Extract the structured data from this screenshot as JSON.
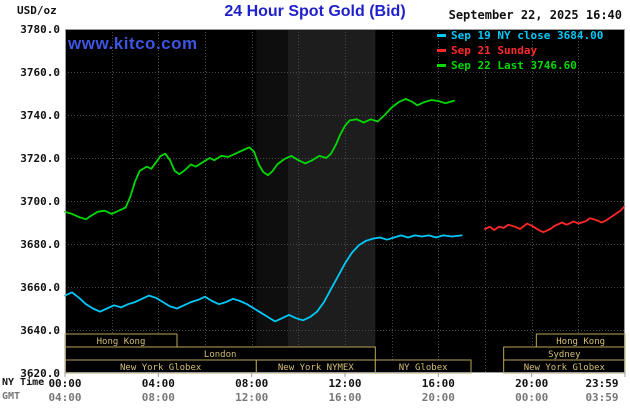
{
  "header": {
    "unit_label": "USD/oz",
    "title": "24 Hour Spot Gold (Bid)",
    "datetime": "September 22, 2025 16:40"
  },
  "watermark": "www.kitco.com",
  "legend": {
    "items": [
      {
        "id": "sep19",
        "label": "Sep 19 NY close 3684.00",
        "color": "#00c8f8"
      },
      {
        "id": "sep21",
        "label": "Sep 21 Sunday",
        "color": "#ff2828"
      },
      {
        "id": "sep22",
        "label": "Sep 22 Last 3746.60",
        "color": "#00d800"
      }
    ]
  },
  "axis": {
    "ny_label": "NY Time",
    "gmt_label": "GMT",
    "tick_hours": [
      0,
      4,
      8,
      12,
      16,
      20,
      24
    ],
    "ny_ticks": [
      "00:00",
      "04:00",
      "08:00",
      "12:00",
      "16:00",
      "20:00",
      "23:59"
    ],
    "gmt_ticks": [
      "04:00",
      "08:00",
      "12:00",
      "16:00",
      "20:00",
      "00:00",
      "03:59"
    ]
  },
  "chart_data": {
    "type": "line",
    "title": "24 Hour Spot Gold (Bid)",
    "ylabel": "USD/oz",
    "xlabel": "NY Time (hours)",
    "ylim": [
      3620,
      3780
    ],
    "xlim_hours": [
      0,
      24
    ],
    "y_ticks": [
      3620,
      3640,
      3660,
      3680,
      3700,
      3720,
      3740,
      3760,
      3780
    ],
    "grid": true,
    "legend_position": "top-right",
    "series": [
      {
        "id": "sep19",
        "name": "Sep 19 NY close 3684.00",
        "color": "#00c8f8",
        "points": [
          [
            0,
            3656
          ],
          [
            0.3,
            3657.5
          ],
          [
            0.6,
            3655
          ],
          [
            0.9,
            3652
          ],
          [
            1.2,
            3650
          ],
          [
            1.5,
            3648.5
          ],
          [
            1.8,
            3650
          ],
          [
            2.1,
            3651.5
          ],
          [
            2.4,
            3650.5
          ],
          [
            2.7,
            3652
          ],
          [
            3,
            3653
          ],
          [
            3.3,
            3654.5
          ],
          [
            3.6,
            3656
          ],
          [
            3.9,
            3655
          ],
          [
            4.2,
            3653
          ],
          [
            4.5,
            3651
          ],
          [
            4.8,
            3650
          ],
          [
            5.1,
            3651.5
          ],
          [
            5.4,
            3653
          ],
          [
            5.7,
            3654
          ],
          [
            6,
            3655.5
          ],
          [
            6.3,
            3653.5
          ],
          [
            6.6,
            3652
          ],
          [
            6.9,
            3653
          ],
          [
            7.2,
            3654.5
          ],
          [
            7.5,
            3653.5
          ],
          [
            7.8,
            3652
          ],
          [
            8.1,
            3650
          ],
          [
            8.4,
            3648
          ],
          [
            8.7,
            3646
          ],
          [
            9,
            3644
          ],
          [
            9.3,
            3645.5
          ],
          [
            9.6,
            3647
          ],
          [
            9.9,
            3645.5
          ],
          [
            10.2,
            3644.5
          ],
          [
            10.5,
            3646
          ],
          [
            10.8,
            3648.5
          ],
          [
            11.1,
            3653
          ],
          [
            11.4,
            3659
          ],
          [
            11.7,
            3665
          ],
          [
            12,
            3671
          ],
          [
            12.3,
            3676
          ],
          [
            12.6,
            3679.5
          ],
          [
            12.9,
            3681.5
          ],
          [
            13.2,
            3682.5
          ],
          [
            13.5,
            3683
          ],
          [
            13.8,
            3682
          ],
          [
            14.1,
            3683
          ],
          [
            14.4,
            3684
          ],
          [
            14.7,
            3683
          ],
          [
            15,
            3684
          ],
          [
            15.3,
            3683.5
          ],
          [
            15.6,
            3684
          ],
          [
            15.9,
            3683
          ],
          [
            16.2,
            3684
          ],
          [
            16.6,
            3683.5
          ],
          [
            17,
            3684
          ]
        ]
      },
      {
        "id": "sep21",
        "name": "Sep 21 Sunday",
        "color": "#ff2828",
        "points": [
          [
            18,
            3687
          ],
          [
            18.2,
            3688
          ],
          [
            18.4,
            3686.5
          ],
          [
            18.6,
            3688
          ],
          [
            18.8,
            3687.5
          ],
          [
            19,
            3689
          ],
          [
            19.3,
            3688
          ],
          [
            19.5,
            3687
          ],
          [
            19.8,
            3689.5
          ],
          [
            20,
            3688.5
          ],
          [
            20.3,
            3686.5
          ],
          [
            20.5,
            3685.5
          ],
          [
            20.8,
            3687
          ],
          [
            21,
            3688.5
          ],
          [
            21.3,
            3690
          ],
          [
            21.5,
            3689
          ],
          [
            21.8,
            3690.5
          ],
          [
            22,
            3689.5
          ],
          [
            22.3,
            3690.5
          ],
          [
            22.5,
            3692
          ],
          [
            22.8,
            3691
          ],
          [
            23,
            3690
          ],
          [
            23.2,
            3691
          ],
          [
            23.4,
            3692.5
          ],
          [
            23.6,
            3694
          ],
          [
            23.8,
            3695.5
          ],
          [
            23.98,
            3697.5
          ]
        ]
      },
      {
        "id": "sep22",
        "name": "Sep 22 Last 3746.60",
        "color": "#00d800",
        "points": [
          [
            0,
            3695
          ],
          [
            0.3,
            3694
          ],
          [
            0.6,
            3692.5
          ],
          [
            0.9,
            3691.5
          ],
          [
            1.1,
            3693
          ],
          [
            1.4,
            3695
          ],
          [
            1.7,
            3695.5
          ],
          [
            2,
            3694
          ],
          [
            2.3,
            3695.5
          ],
          [
            2.6,
            3697
          ],
          [
            2.8,
            3702
          ],
          [
            3,
            3709
          ],
          [
            3.2,
            3714
          ],
          [
            3.5,
            3716
          ],
          [
            3.7,
            3715
          ],
          [
            3.9,
            3718
          ],
          [
            4.1,
            3721
          ],
          [
            4.3,
            3722
          ],
          [
            4.5,
            3719
          ],
          [
            4.7,
            3714
          ],
          [
            4.9,
            3712.5
          ],
          [
            5.1,
            3714
          ],
          [
            5.4,
            3717
          ],
          [
            5.6,
            3716
          ],
          [
            5.9,
            3718
          ],
          [
            6.2,
            3720
          ],
          [
            6.4,
            3719
          ],
          [
            6.7,
            3721
          ],
          [
            7,
            3720.5
          ],
          [
            7.3,
            3722
          ],
          [
            7.6,
            3723.5
          ],
          [
            7.9,
            3725
          ],
          [
            8.1,
            3723
          ],
          [
            8.3,
            3717
          ],
          [
            8.5,
            3713.5
          ],
          [
            8.7,
            3712
          ],
          [
            8.9,
            3714
          ],
          [
            9.1,
            3717
          ],
          [
            9.4,
            3719.5
          ],
          [
            9.7,
            3721
          ],
          [
            10,
            3719
          ],
          [
            10.3,
            3717.5
          ],
          [
            10.6,
            3719
          ],
          [
            10.9,
            3721
          ],
          [
            11.2,
            3720
          ],
          [
            11.4,
            3722
          ],
          [
            11.6,
            3726
          ],
          [
            11.8,
            3731
          ],
          [
            12,
            3735
          ],
          [
            12.2,
            3737.5
          ],
          [
            12.5,
            3738
          ],
          [
            12.8,
            3736.5
          ],
          [
            13.1,
            3738
          ],
          [
            13.4,
            3737
          ],
          [
            13.7,
            3740
          ],
          [
            14,
            3743.5
          ],
          [
            14.3,
            3746
          ],
          [
            14.6,
            3747.5
          ],
          [
            14.9,
            3746
          ],
          [
            15.1,
            3744.5
          ],
          [
            15.4,
            3746
          ],
          [
            15.7,
            3747
          ],
          [
            16,
            3746.5
          ],
          [
            16.3,
            3745.5
          ],
          [
            16.67,
            3746.6
          ]
        ]
      }
    ],
    "bands": [
      {
        "from": 8.2,
        "to": 9.55,
        "color": "#0e0e0e"
      },
      {
        "from": 9.55,
        "to": 13.3,
        "color": "#1d1d1d"
      }
    ],
    "sessions": {
      "rows": [
        [
          {
            "label": "Hong Kong",
            "from": 0,
            "to": 4.8
          },
          {
            "label": "Hong Kong",
            "from": 20.2,
            "to": 24
          }
        ],
        [
          {
            "label": "London",
            "from": 0,
            "to": 13.3
          },
          {
            "label": "Sydney",
            "from": 18.8,
            "to": 24
          }
        ],
        [
          {
            "label": "New York Globex",
            "from": 0,
            "to": 8.2
          },
          {
            "label": "New York NYMEX",
            "from": 8.2,
            "to": 13.3
          },
          {
            "label": "NY Globex",
            "from": 13.3,
            "to": 17.4
          },
          {
            "label": "New York Globex",
            "from": 18.8,
            "to": 24
          }
        ]
      ]
    },
    "style": {
      "page_bg": "#ffffff",
      "plot_bg": "#000000",
      "grid": "#4a4a4a",
      "frame": "#9c9c9c",
      "session_border": "#b9a458",
      "session_text": "#d4bf75",
      "title_color": "#2121cc",
      "watermark_color": "#3d55e0"
    }
  }
}
